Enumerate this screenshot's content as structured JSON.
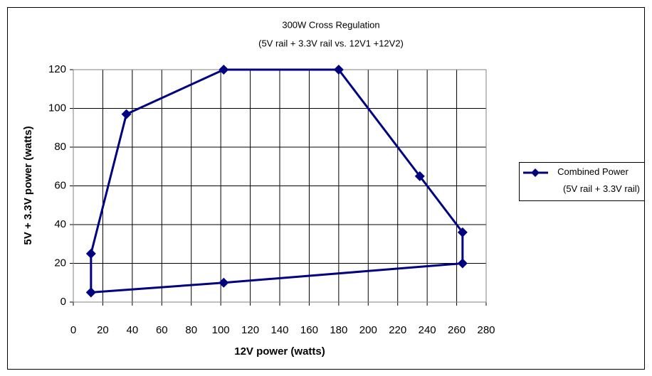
{
  "chart_data": {
    "type": "line",
    "title": "300W Cross Regulation",
    "subtitle": "(5V rail + 3.3V rail vs. 12V1 +12V2)",
    "x_label": "12V power (watts)",
    "y_label": "5V + 3.3V power (watts)",
    "x": [
      12,
      12,
      36,
      102,
      180,
      235,
      264,
      264,
      102,
      12
    ],
    "series": [
      {
        "name": "Combined Power (5V rail + 3.3V rail)",
        "color": "#000080",
        "values": [
          5,
          25,
          97,
          120,
          120,
          65,
          36,
          20,
          10,
          5
        ]
      }
    ],
    "xlim": [
      0,
      280
    ],
    "xticks": [
      0,
      20,
      40,
      60,
      80,
      100,
      120,
      140,
      160,
      180,
      200,
      220,
      240,
      260,
      280
    ],
    "ylim": [
      0,
      120
    ],
    "yticks": [
      0,
      20,
      40,
      60,
      80,
      100,
      120
    ],
    "grid": true,
    "legend": "right"
  }
}
